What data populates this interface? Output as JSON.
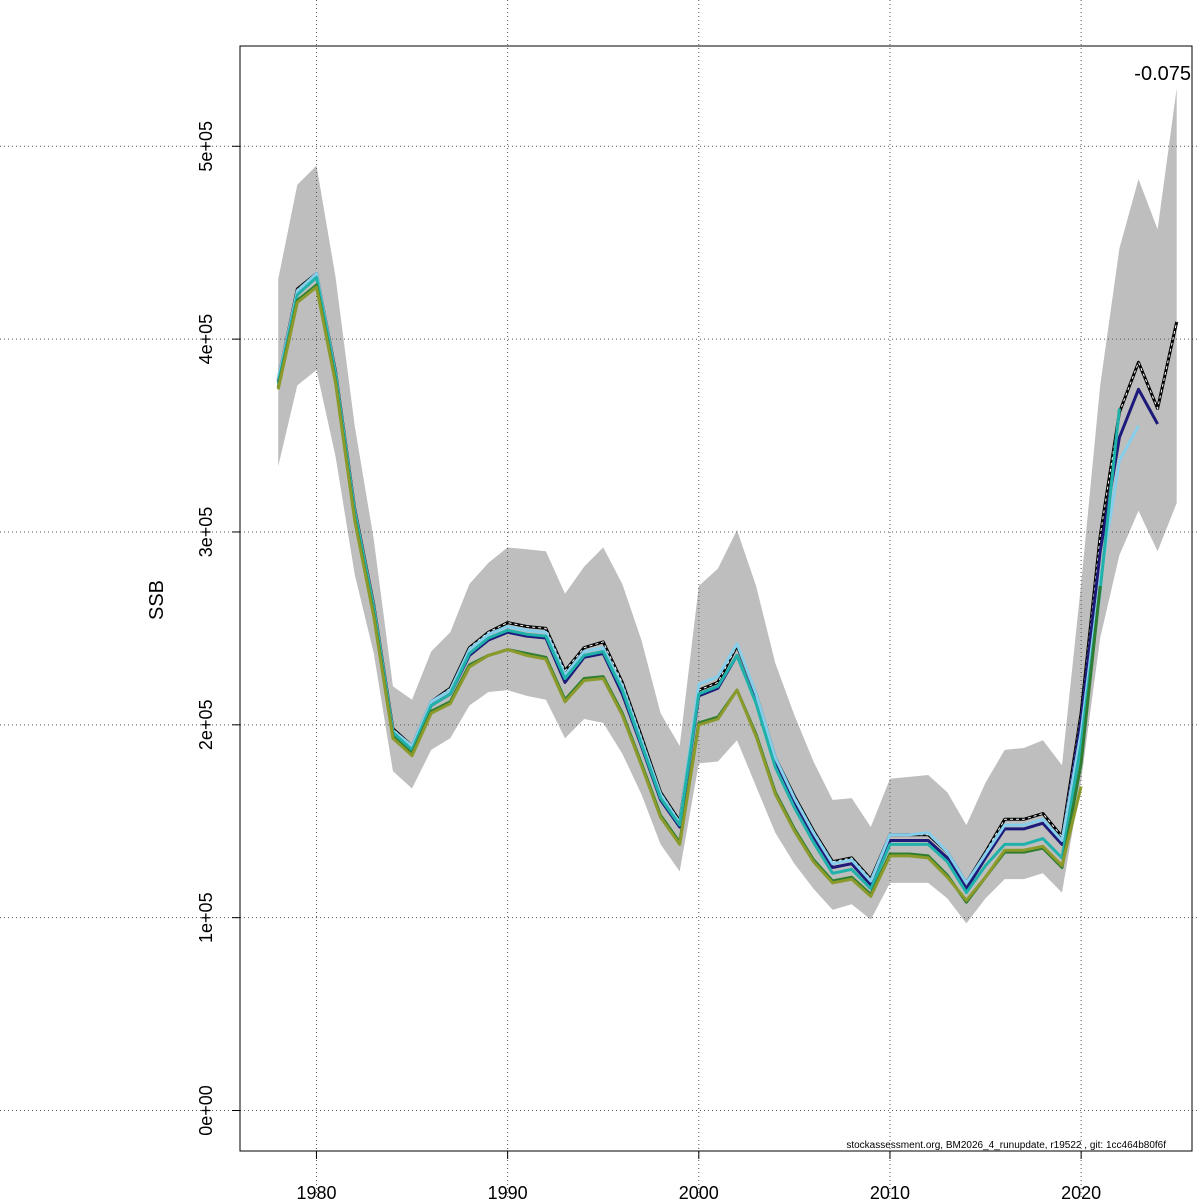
{
  "chart_data": {
    "type": "line",
    "ylabel": "SSB",
    "xlabel": "",
    "xlim": [
      1976,
      2025.8
    ],
    "ylim": [
      -21000,
      552000
    ],
    "x_ticks": [
      1980,
      1990,
      2000,
      2010,
      2020
    ],
    "y_ticks": [
      0,
      100000,
      200000,
      300000,
      400000,
      500000
    ],
    "y_tick_labels": [
      "0e+00",
      "1e+05",
      "2e+05",
      "3e+05",
      "4e+05",
      "5e+05"
    ],
    "x_tick_labels": [
      "1980",
      "1990",
      "2000",
      "2010",
      "2020"
    ],
    "grid": true,
    "annotation": "-0.075",
    "footer": "stockassessment.org, BM2026_4_runupdate, r19522 , git: 1cc464b80f6f",
    "band": {
      "x": [
        1978,
        1979,
        1980,
        1981,
        1982,
        1983,
        1984,
        1985,
        1986,
        1987,
        1988,
        1989,
        1990,
        1991,
        1992,
        1993,
        1994,
        1995,
        1996,
        1997,
        1998,
        1999,
        2000,
        2001,
        2002,
        2003,
        2004,
        2005,
        2006,
        2007,
        2008,
        2009,
        2010,
        2011,
        2012,
        2013,
        2014,
        2015,
        2016,
        2017,
        2018,
        2019,
        2020,
        2021,
        2022,
        2023,
        2024,
        2025
      ],
      "upper": [
        431000,
        480000,
        490000,
        432000,
        355000,
        296000,
        220000,
        213000,
        238000,
        248000,
        273000,
        284000,
        292000,
        291000,
        290000,
        268000,
        282000,
        292000,
        273000,
        244000,
        206000,
        189000,
        272000,
        281000,
        301000,
        272000,
        232000,
        205000,
        181000,
        161000,
        162000,
        147000,
        172000,
        173000,
        174000,
        165000,
        148000,
        170000,
        187000,
        188000,
        192000,
        179000,
        273000,
        376000,
        447000,
        483000,
        457000,
        530000
      ],
      "lower": [
        334000,
        376000,
        384000,
        339000,
        278000,
        237000,
        176000,
        167000,
        187000,
        193000,
        210000,
        217000,
        218000,
        215000,
        213000,
        193000,
        203000,
        201000,
        185000,
        164000,
        138000,
        124000,
        180000,
        181000,
        192000,
        168000,
        144000,
        128000,
        115000,
        104000,
        107000,
        99000,
        118000,
        118000,
        118000,
        110000,
        97000,
        110000,
        120000,
        120000,
        123000,
        113000,
        171000,
        245000,
        288000,
        311000,
        290000,
        315000
      ]
    },
    "series": [
      {
        "color": "#000000",
        "dashed": true,
        "x": [
          1978,
          1979,
          1980,
          1981,
          1982,
          1983,
          1984,
          1985,
          1986,
          1987,
          1988,
          1989,
          1990,
          1991,
          1992,
          1993,
          1994,
          1995,
          1996,
          1997,
          1998,
          1999,
          2000,
          2001,
          2002,
          2003,
          2004,
          2005,
          2006,
          2007,
          2008,
          2009,
          2010,
          2011,
          2012,
          2013,
          2014,
          2015,
          2016,
          2017,
          2018,
          2019,
          2020,
          2021,
          2022,
          2023,
          2024,
          2025
        ],
        "values": [
          379000,
          426000,
          434000,
          383000,
          312000,
          262000,
          198000,
          189000,
          212000,
          219000,
          240000,
          248000,
          253000,
          251000,
          250000,
          228000,
          240000,
          243000,
          222000,
          194000,
          165000,
          150000,
          218000,
          222000,
          241000,
          216000,
          183000,
          163000,
          145000,
          129000,
          131000,
          120000,
          143000,
          143000,
          143000,
          134000,
          118000,
          134000,
          151000,
          151000,
          154000,
          142000,
          206000,
          298000,
          362000,
          388000,
          364000,
          409000
        ]
      },
      {
        "color": "#1e1a7a",
        "dashed": false,
        "x": [
          1978,
          1979,
          1980,
          1981,
          1982,
          1983,
          1984,
          1985,
          1986,
          1987,
          1988,
          1989,
          1990,
          1991,
          1992,
          1993,
          1994,
          1995,
          1996,
          1997,
          1998,
          1999,
          2000,
          2001,
          2002,
          2003,
          2004,
          2005,
          2006,
          2007,
          2008,
          2009,
          2010,
          2011,
          2012,
          2013,
          2014,
          2015,
          2016,
          2017,
          2018,
          2019,
          2020,
          2021,
          2022,
          2023,
          2024
        ],
        "values": [
          378000,
          424000,
          433000,
          381000,
          310000,
          260000,
          196000,
          187000,
          210000,
          216000,
          236000,
          244000,
          248000,
          246000,
          245000,
          222000,
          235000,
          237000,
          216000,
          189000,
          161000,
          147000,
          215000,
          219000,
          236000,
          212000,
          180000,
          160000,
          142000,
          126000,
          128000,
          117000,
          140000,
          140000,
          140000,
          131000,
          115000,
          131000,
          146000,
          146000,
          149000,
          138000,
          202000,
          290000,
          349000,
          374000,
          356000
        ]
      },
      {
        "color": "#87ceeb",
        "dashed": false,
        "x": [
          1978,
          1979,
          1980,
          1981,
          1982,
          1983,
          1984,
          1985,
          1986,
          1987,
          1988,
          1989,
          1990,
          1991,
          1992,
          1993,
          1994,
          1995,
          1996,
          1997,
          1998,
          1999,
          2000,
          2001,
          2002,
          2003,
          2004,
          2005,
          2006,
          2007,
          2008,
          2009,
          2010,
          2011,
          2012,
          2013,
          2014,
          2015,
          2016,
          2017,
          2018,
          2019,
          2020,
          2021,
          2022,
          2023
        ],
        "values": [
          379000,
          425000,
          434000,
          382000,
          311000,
          261000,
          197000,
          189000,
          212000,
          218000,
          239000,
          247000,
          251000,
          249000,
          248000,
          226000,
          238000,
          240000,
          220000,
          192000,
          164000,
          149000,
          221000,
          225000,
          242000,
          216000,
          183000,
          162000,
          144000,
          128000,
          130000,
          119000,
          143000,
          143000,
          144000,
          134000,
          118000,
          133000,
          148000,
          148000,
          151000,
          140000,
          196000,
          275000,
          337000,
          355000
        ]
      },
      {
        "color": "#20b2aa",
        "dashed": false,
        "x": [
          1978,
          1979,
          1980,
          1981,
          1982,
          1983,
          1984,
          1985,
          1986,
          1987,
          1988,
          1989,
          1990,
          1991,
          1992,
          1993,
          1994,
          1995,
          1996,
          1997,
          1998,
          1999,
          2000,
          2001,
          2002,
          2003,
          2004,
          2005,
          2006,
          2007,
          2008,
          2009,
          2010,
          2011,
          2012,
          2013,
          2014,
          2015,
          2016,
          2017,
          2018,
          2019,
          2020,
          2021,
          2022
        ],
        "values": [
          377000,
          423000,
          432000,
          381000,
          310000,
          260000,
          196000,
          187000,
          210000,
          216000,
          237000,
          245000,
          249000,
          247000,
          246000,
          224000,
          236000,
          238000,
          218000,
          190000,
          162000,
          148000,
          216000,
          220000,
          236000,
          211000,
          178000,
          157000,
          139000,
          123000,
          125000,
          115000,
          138000,
          138000,
          138000,
          129000,
          113000,
          127000,
          138000,
          138000,
          141000,
          131000,
          190000,
          270000,
          364000
        ]
      },
      {
        "color": "#2e7d32",
        "dashed": false,
        "x": [
          1978,
          1979,
          1980,
          1981,
          1982,
          1983,
          1984,
          1985,
          1986,
          1987,
          1988,
          1989,
          1990,
          1991,
          1992,
          1993,
          1994,
          1995,
          1996,
          1997,
          1998,
          1999,
          2000,
          2001,
          2002,
          2003,
          2004,
          2005,
          2006,
          2007,
          2008,
          2009,
          2010,
          2011,
          2012,
          2013,
          2014,
          2015,
          2016,
          2017,
          2018,
          2019,
          2020,
          2021
        ],
        "values": [
          375000,
          420000,
          428000,
          378000,
          307000,
          257000,
          194000,
          185000,
          207000,
          212000,
          231000,
          236000,
          239000,
          237000,
          235000,
          213000,
          224000,
          225000,
          206000,
          180000,
          153000,
          139000,
          201000,
          204000,
          218000,
          195000,
          165000,
          146000,
          130000,
          119000,
          121000,
          112000,
          133000,
          133000,
          132000,
          122000,
          108000,
          121000,
          134000,
          134000,
          136000,
          126000,
          180000,
          272000
        ]
      },
      {
        "color": "#8b9a2a",
        "dashed": false,
        "x": [
          1978,
          1979,
          1980,
          1981,
          1982,
          1983,
          1984,
          1985,
          1986,
          1987,
          1988,
          1989,
          1990,
          1991,
          1992,
          1993,
          1994,
          1995,
          1996,
          1997,
          1998,
          1999,
          2000,
          2001,
          2002,
          2003,
          2004,
          2005,
          2006,
          2007,
          2008,
          2009,
          2010,
          2011,
          2012,
          2013,
          2014,
          2015,
          2016,
          2017,
          2018,
          2019,
          2020
        ],
        "values": [
          374000,
          419000,
          427000,
          377000,
          306000,
          256000,
          193000,
          184000,
          206000,
          211000,
          230000,
          236000,
          239000,
          236000,
          234000,
          212000,
          223000,
          224000,
          205000,
          179000,
          152000,
          138000,
          200000,
          203000,
          218000,
          194000,
          164000,
          145000,
          129000,
          118000,
          120000,
          111000,
          132000,
          132000,
          131000,
          121000,
          109000,
          121000,
          135000,
          135000,
          137000,
          127000,
          168000
        ]
      }
    ]
  }
}
